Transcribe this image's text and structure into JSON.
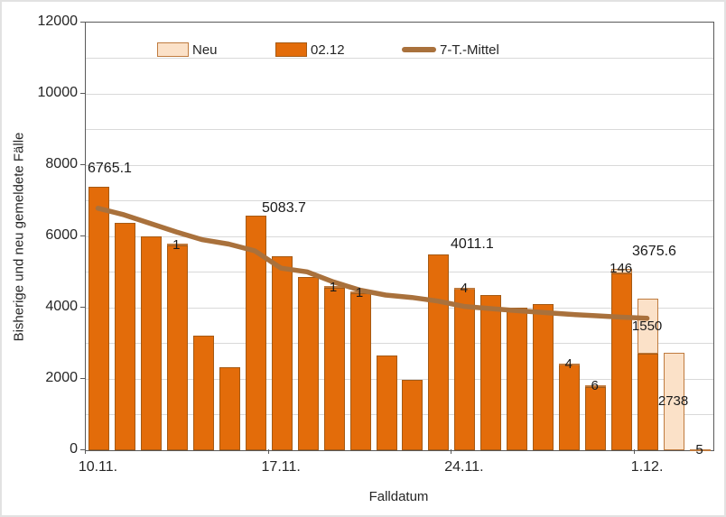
{
  "chart_data": {
    "type": "bar",
    "title": "",
    "xlabel": "Falldatum",
    "ylabel": "Bisherige und neu gemeldete Fälle",
    "ylim": [
      0,
      12000
    ],
    "gridline_step": 1000,
    "grid": true,
    "legend_position": "top-inside",
    "n_categories": 24,
    "y_tick_labels": [
      "12000",
      "10000",
      "8000",
      "6000",
      "4000",
      "2000",
      "0"
    ],
    "x_tick_labels": [
      "10.11.",
      "17.11.",
      "24.11.",
      "1.12."
    ],
    "x_tick_category_indices": [
      0,
      7,
      14,
      21
    ],
    "series": [
      {
        "name": "02.12",
        "type": "bar",
        "stack_order": 0,
        "color": "#E36C0A",
        "border_color": "#A55A14",
        "values": [
          7400,
          6370,
          6000,
          5750,
          3210,
          2330,
          6570,
          5450,
          4850,
          4560,
          4410,
          2650,
          1970,
          5490,
          4520,
          4350,
          4000,
          4100,
          2400,
          1780,
          4950,
          2700,
          0,
          0
        ]
      },
      {
        "name": "Neu",
        "type": "bar",
        "stack_order": 1,
        "color": "#FBE1C8",
        "border_color": "#BF7B3F",
        "values": [
          0,
          0,
          0,
          1,
          0,
          0,
          0,
          0,
          0,
          1,
          1,
          0,
          0,
          0,
          4,
          0,
          0,
          0,
          4,
          6,
          146,
          1550,
          2738,
          5
        ],
        "labels_shown_for_nonzero": true
      },
      {
        "name": "7-T.-Mittel",
        "type": "line",
        "color": "#A9713C",
        "values": [
          6765.1,
          6580,
          6340,
          6100,
          5880,
          5760,
          5570,
          5083.7,
          4980,
          4700,
          4470,
          4330,
          4260,
          4160,
          4011.1,
          3950,
          3890,
          3840,
          3790,
          3750,
          3710,
          3675.6
        ],
        "point_labels": [
          {
            "category": 0,
            "text": "6765.1"
          },
          {
            "category": 7,
            "text": "5083.7"
          },
          {
            "category": 14,
            "text": "4011.1"
          },
          {
            "category": 21,
            "text": "3675.6"
          }
        ]
      }
    ],
    "colors": {
      "grid": "#D9D9D9",
      "axis": "#595959",
      "text": "#262626"
    }
  },
  "legend": {
    "items": [
      {
        "label": "Neu",
        "swatch": "bar-light"
      },
      {
        "label": "02.12",
        "swatch": "bar-dark"
      },
      {
        "label": "7-T.-Mittel",
        "swatch": "line"
      }
    ]
  }
}
